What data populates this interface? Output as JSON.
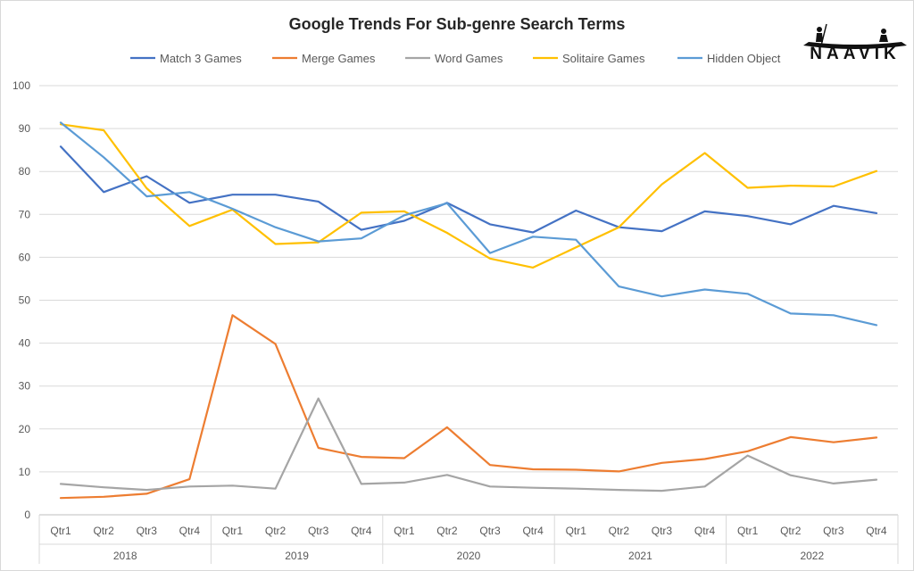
{
  "chart_data": {
    "type": "line",
    "title": "Google Trends For Sub-genre Search Terms",
    "xlabel": "",
    "ylabel": "",
    "ylim": [
      0,
      100
    ],
    "yticks": [
      0,
      10,
      20,
      30,
      40,
      50,
      60,
      70,
      80,
      90,
      100
    ],
    "grid": true,
    "legend_position": "top",
    "categories": [
      "Qtr1",
      "Qtr2",
      "Qtr3",
      "Qtr4",
      "Qtr1",
      "Qtr2",
      "Qtr3",
      "Qtr4",
      "Qtr1",
      "Qtr2",
      "Qtr3",
      "Qtr4",
      "Qtr1",
      "Qtr2",
      "Qtr3",
      "Qtr4",
      "Qtr1",
      "Qtr2",
      "Qtr3",
      "Qtr4"
    ],
    "groups": [
      "2018",
      "2019",
      "2020",
      "2021",
      "2022"
    ],
    "series": [
      {
        "name": "Match 3 Games",
        "color": "#4472C4",
        "values": [
          85.8,
          75.2,
          78.9,
          72.7,
          74.6,
          74.6,
          73.0,
          66.4,
          68.5,
          72.7,
          67.7,
          65.8,
          70.9,
          67.0,
          66.1,
          70.7,
          69.6,
          67.7,
          72.0,
          70.3
        ]
      },
      {
        "name": "Merge Games",
        "color": "#ED7D31",
        "values": [
          3.9,
          4.2,
          4.9,
          8.3,
          46.5,
          39.8,
          15.6,
          13.5,
          13.2,
          20.4,
          11.6,
          10.6,
          10.5,
          10.1,
          12.1,
          13.0,
          14.8,
          18.1,
          16.9,
          18.0
        ]
      },
      {
        "name": "Word Games",
        "color": "#A5A5A5",
        "values": [
          7.2,
          6.4,
          5.8,
          6.6,
          6.8,
          6.1,
          27.1,
          7.2,
          7.5,
          9.3,
          6.6,
          6.3,
          6.1,
          5.8,
          5.6,
          6.6,
          13.8,
          9.2,
          7.3,
          8.2
        ]
      },
      {
        "name": "Solitaire Games",
        "color": "#FFC000",
        "values": [
          91.0,
          89.6,
          76.1,
          67.3,
          71.1,
          63.1,
          63.5,
          70.4,
          70.7,
          65.7,
          59.7,
          57.6,
          62.3,
          67.0,
          77.0,
          84.3,
          76.2,
          76.7,
          76.5,
          80.1
        ]
      },
      {
        "name": "Hidden Object",
        "color": "#5B9BD5",
        "values": [
          91.4,
          83.3,
          74.2,
          75.2,
          71.3,
          67.0,
          63.7,
          64.4,
          69.8,
          72.6,
          61.0,
          64.8,
          64.1,
          53.2,
          50.9,
          52.5,
          51.5,
          46.9,
          46.5,
          44.2
        ]
      }
    ]
  },
  "logo": {
    "text": "NAAVIK"
  }
}
